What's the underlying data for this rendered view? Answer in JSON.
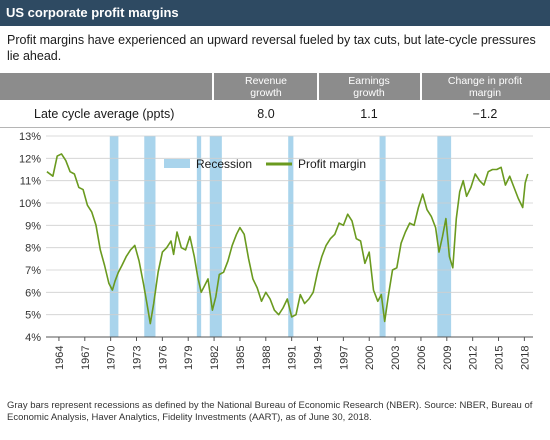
{
  "header": {
    "title": "US corporate profit margins"
  },
  "subtitle": "Profit margins have experienced an upward reversal fueled by tax cuts, but late-cycle pressures lie ahead.",
  "table": {
    "row_label": "Late cycle average (ppts)",
    "columns": [
      {
        "label": "Revenue growth",
        "value": "8.0"
      },
      {
        "label": "Earnings growth",
        "value": "1.1"
      },
      {
        "label": "Change in profit margin",
        "value": "−1.2"
      }
    ]
  },
  "footnote": "Gray bars represent recessions as defined by the National Bureau of Economic Research (NBER). Source: NBER, Bureau of Economic Analysis, Haver Analytics, Fidelity Investments (AART), as of June 30, 2018.",
  "colors": {
    "header": "#2e4a62",
    "line": "#6a9a1f",
    "recession": "#a9d4ec",
    "table_head": "#8c8c8c"
  },
  "chart_data": {
    "type": "line",
    "title": "",
    "xlabel": "",
    "ylabel": "",
    "xlim": [
      1962.5,
      2019.0
    ],
    "ylim": [
      4,
      13
    ],
    "y_ticks": [
      4,
      5,
      6,
      7,
      8,
      9,
      10,
      11,
      12,
      13
    ],
    "y_tick_labels": [
      "4%",
      "5%",
      "6%",
      "7%",
      "8%",
      "9%",
      "10%",
      "11%",
      "12%",
      "13%"
    ],
    "x_ticks": [
      1964,
      1967,
      1970,
      1973,
      1976,
      1979,
      1982,
      1985,
      1988,
      1991,
      1994,
      1997,
      2000,
      2003,
      2006,
      2009,
      2012,
      2015,
      2018
    ],
    "grid": "horizontal",
    "legend": {
      "position": "top-center",
      "items": [
        {
          "label": "Recession",
          "kind": "box"
        },
        {
          "label": "Profit margin",
          "kind": "line"
        }
      ]
    },
    "recessions": [
      {
        "start": 1969.9,
        "end": 1970.9
      },
      {
        "start": 1973.9,
        "end": 1975.2
      },
      {
        "start": 1980.0,
        "end": 1980.5
      },
      {
        "start": 1981.5,
        "end": 1982.9
      },
      {
        "start": 1990.6,
        "end": 1991.2
      },
      {
        "start": 2001.2,
        "end": 2001.9
      },
      {
        "start": 2007.9,
        "end": 2009.5
      }
    ],
    "series": [
      {
        "name": "Profit margin",
        "x": [
          1962.6,
          1963.3,
          1963.8,
          1964.3,
          1964.8,
          1965.3,
          1965.8,
          1966.3,
          1966.8,
          1967.3,
          1967.8,
          1968.3,
          1968.8,
          1969.3,
          1969.8,
          1970.2,
          1970.5,
          1970.9,
          1971.3,
          1971.8,
          1972.3,
          1972.8,
          1973.3,
          1973.8,
          1974.3,
          1974.6,
          1975.0,
          1975.5,
          1976.0,
          1976.5,
          1977.0,
          1977.3,
          1977.7,
          1978.2,
          1978.7,
          1979.2,
          1979.7,
          1980.1,
          1980.5,
          1980.9,
          1981.3,
          1981.8,
          1982.2,
          1982.6,
          1983.1,
          1983.6,
          1984.1,
          1984.6,
          1985.0,
          1985.5,
          1986.0,
          1986.5,
          1987.0,
          1987.5,
          1988.0,
          1988.5,
          1989.0,
          1989.5,
          1990.0,
          1990.5,
          1991.0,
          1991.5,
          1992.0,
          1992.5,
          1993.0,
          1993.5,
          1994.0,
          1994.5,
          1995.0,
          1995.5,
          1996.0,
          1996.5,
          1997.0,
          1997.5,
          1998.0,
          1998.5,
          1999.0,
          1999.5,
          2000.0,
          2000.5,
          2001.0,
          2001.4,
          2001.8,
          2002.2,
          2002.7,
          2003.2,
          2003.7,
          2004.2,
          2004.7,
          2005.2,
          2005.7,
          2006.2,
          2006.7,
          2007.2,
          2007.7,
          2008.1,
          2008.5,
          2008.9,
          2009.3,
          2009.7,
          2010.1,
          2010.5,
          2010.9,
          2011.3,
          2011.8,
          2012.3,
          2012.8,
          2013.3,
          2013.8,
          2014.3,
          2014.8,
          2015.3,
          2015.8,
          2016.3,
          2016.8,
          2017.3,
          2017.8,
          2018.1,
          2018.4
        ],
        "values": [
          11.4,
          11.2,
          12.1,
          12.2,
          11.9,
          11.4,
          11.3,
          10.7,
          10.6,
          9.9,
          9.6,
          9.0,
          7.9,
          7.2,
          6.4,
          6.1,
          6.5,
          6.9,
          7.2,
          7.6,
          7.9,
          8.1,
          7.4,
          6.4,
          5.3,
          4.6,
          5.5,
          6.9,
          7.8,
          8.0,
          8.3,
          7.7,
          8.7,
          8.0,
          7.9,
          8.5,
          7.6,
          6.7,
          6.0,
          6.3,
          6.6,
          5.2,
          5.8,
          6.8,
          6.9,
          7.4,
          8.1,
          8.6,
          8.9,
          8.6,
          7.5,
          6.6,
          6.2,
          5.6,
          6.0,
          5.7,
          5.2,
          5.0,
          5.3,
          5.7,
          4.9,
          5.0,
          5.9,
          5.5,
          5.7,
          6.0,
          6.9,
          7.6,
          8.1,
          8.4,
          8.6,
          9.1,
          9.0,
          9.5,
          9.2,
          8.4,
          8.3,
          7.3,
          7.8,
          6.1,
          5.6,
          5.9,
          4.7,
          5.8,
          7.0,
          7.1,
          8.2,
          8.7,
          9.1,
          9.0,
          9.8,
          10.4,
          9.7,
          9.4,
          8.9,
          7.8,
          8.5,
          9.3,
          7.6,
          7.1,
          9.3,
          10.5,
          11.0,
          10.3,
          10.7,
          11.3,
          11.0,
          10.8,
          11.4,
          11.5,
          11.5,
          11.6,
          10.8,
          11.2,
          10.7,
          10.2,
          9.8,
          10.9,
          11.3
        ]
      }
    ]
  }
}
